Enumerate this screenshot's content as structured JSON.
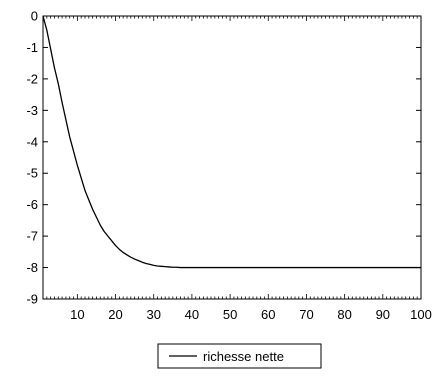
{
  "chart_data": {
    "type": "line",
    "title": "",
    "xlabel": "",
    "ylabel": "",
    "xlim": [
      1,
      100
    ],
    "ylim": [
      -9,
      0
    ],
    "x_ticks": [
      10,
      20,
      30,
      40,
      50,
      60,
      70,
      80,
      90,
      100
    ],
    "x_tick_labels": [
      "10",
      "20",
      "30",
      "40",
      "50",
      "60",
      "70",
      "80",
      "90",
      "100"
    ],
    "y_ticks": [
      0,
      -1,
      -2,
      -3,
      -4,
      -5,
      -6,
      -7,
      -8,
      -9
    ],
    "y_tick_labels": [
      "0",
      "-1",
      "-2",
      "-3",
      "-4",
      "-5",
      "-6",
      "-7",
      "-8",
      "-9"
    ],
    "x_minor_tick_step": 1,
    "grid": false,
    "legend_position": "bottom-center",
    "series": [
      {
        "name": "richesse nette",
        "color": "#000000",
        "x": [
          1,
          2,
          3,
          4,
          5,
          6,
          7,
          8,
          9,
          10,
          11,
          12,
          13,
          14,
          15,
          16,
          17,
          18,
          19,
          20,
          21,
          22,
          23,
          24,
          25,
          26,
          27,
          28,
          29,
          30,
          31,
          32,
          33,
          34,
          35,
          36,
          37,
          38,
          39,
          40,
          45,
          50,
          60,
          70,
          80,
          90,
          100
        ],
        "values": [
          0.0,
          -0.45,
          -1.05,
          -1.65,
          -2.15,
          -2.75,
          -3.3,
          -3.85,
          -4.3,
          -4.75,
          -5.15,
          -5.55,
          -5.85,
          -6.15,
          -6.4,
          -6.65,
          -6.85,
          -7.0,
          -7.15,
          -7.3,
          -7.42,
          -7.52,
          -7.6,
          -7.67,
          -7.73,
          -7.78,
          -7.83,
          -7.87,
          -7.9,
          -7.93,
          -7.95,
          -7.96,
          -7.97,
          -7.98,
          -7.99,
          -7.99,
          -8.0,
          -8.0,
          -8.0,
          -8.0,
          -8.0,
          -8.0,
          -8.0,
          -8.0,
          -8.0,
          -8.0,
          -8.0
        ]
      }
    ]
  }
}
